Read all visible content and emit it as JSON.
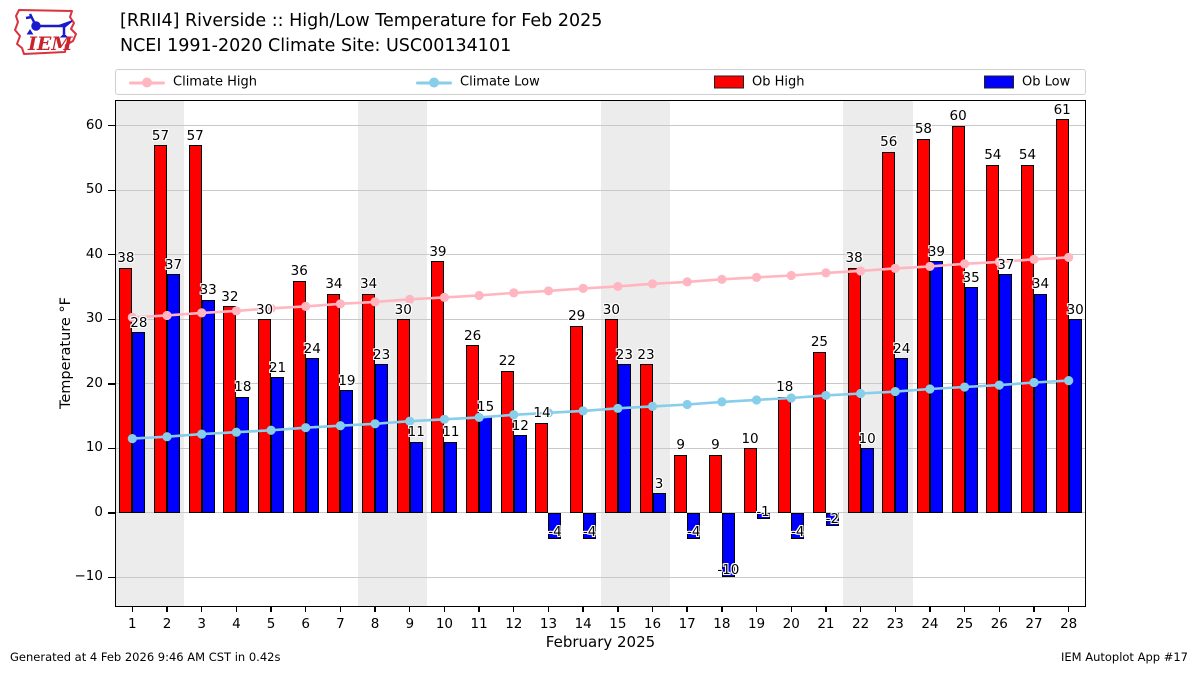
{
  "header": {
    "title_line1": "[RRII4] Riverside :: High/Low Temperature for Feb 2025",
    "title_line2": "NCEI 1991-2020 Climate Site: USC00134101",
    "logo_text": "IEM"
  },
  "legend": {
    "items": [
      {
        "label": "Climate High",
        "type": "line",
        "color": "#ffb6c1"
      },
      {
        "label": "Climate Low",
        "type": "line",
        "color": "#87ceeb"
      },
      {
        "label": "Ob High",
        "type": "patch",
        "color": "#ff0000"
      },
      {
        "label": "Ob Low",
        "type": "patch",
        "color": "#0000ff"
      }
    ]
  },
  "chart_data": {
    "type": "bar",
    "title": "[RRII4] Riverside :: High/Low Temperature for Feb 2025",
    "subtitle": "NCEI 1991-2020 Climate Site: USC00134101",
    "xlabel": "February 2025",
    "ylabel": "Temperature °F",
    "x": [
      1,
      2,
      3,
      4,
      5,
      6,
      7,
      8,
      9,
      10,
      11,
      12,
      13,
      14,
      15,
      16,
      17,
      18,
      19,
      20,
      21,
      22,
      23,
      24,
      25,
      26,
      27,
      28
    ],
    "series": [
      {
        "name": "Ob High",
        "type": "bar",
        "color": "#ff0000",
        "values": [
          38,
          57,
          57,
          32,
          30,
          36,
          34,
          34,
          30,
          39,
          26,
          22,
          14,
          29,
          30,
          23,
          9,
          9,
          10,
          18,
          25,
          38,
          56,
          58,
          60,
          54,
          54,
          61
        ]
      },
      {
        "name": "Ob Low",
        "type": "bar",
        "color": "#0000ff",
        "values": [
          28,
          37,
          33,
          18,
          21,
          24,
          19,
          23,
          11,
          11,
          15,
          12,
          -4,
          -4,
          23,
          3,
          -4,
          -10,
          -1,
          -4,
          -2,
          10,
          24,
          39,
          35,
          37,
          34,
          30
        ]
      },
      {
        "name": "Climate High",
        "type": "line",
        "color": "#ffb6c1",
        "values": [
          30.3,
          30.6,
          31.0,
          31.3,
          31.7,
          32.0,
          32.4,
          32.7,
          33.1,
          33.4,
          33.7,
          34.1,
          34.4,
          34.8,
          35.1,
          35.5,
          35.8,
          36.2,
          36.5,
          36.8,
          37.2,
          37.5,
          37.9,
          38.2,
          38.6,
          38.9,
          39.3,
          39.6
        ]
      },
      {
        "name": "Climate Low",
        "type": "line",
        "color": "#87ceeb",
        "values": [
          11.5,
          11.8,
          12.2,
          12.5,
          12.8,
          13.2,
          13.5,
          13.8,
          14.2,
          14.5,
          14.8,
          15.2,
          15.5,
          15.8,
          16.2,
          16.5,
          16.8,
          17.2,
          17.5,
          17.8,
          18.2,
          18.5,
          18.8,
          19.2,
          19.5,
          19.8,
          20.2,
          20.5
        ]
      }
    ],
    "yticks": [
      -10,
      0,
      10,
      20,
      30,
      40,
      50,
      60
    ],
    "ylim": [
      -14.6,
      64.0
    ],
    "grid": true,
    "legend_position": "top",
    "weekend_bands": [
      [
        1,
        2
      ],
      [
        8,
        9
      ],
      [
        15,
        16
      ],
      [
        22,
        23
      ]
    ],
    "band_color": "#ececec"
  },
  "footer": {
    "left": "Generated at 4 Feb 2026 9:46 AM CST in 0.42s",
    "right": "IEM Autoplot App #17"
  }
}
